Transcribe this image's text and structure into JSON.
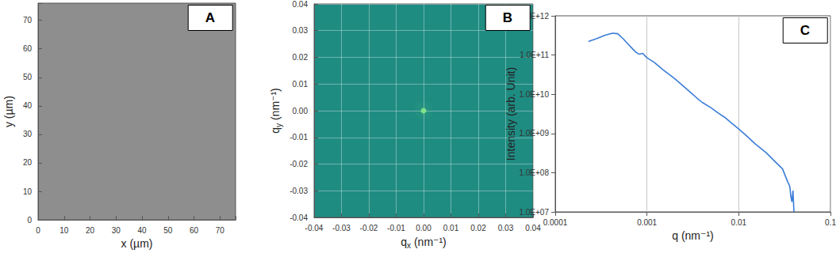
{
  "chart_data": [
    {
      "type": "image",
      "title": "A",
      "xlabel": "x (µm)",
      "ylabel": "y (µm)",
      "xlim": [
        0,
        76
      ],
      "ylim": [
        0,
        76
      ],
      "xticks": [
        0,
        10,
        20,
        30,
        40,
        50,
        60,
        70
      ],
      "yticks": [
        0,
        10,
        20,
        30,
        40,
        50,
        60,
        70
      ],
      "color": "#8e8e8e",
      "grid": false
    },
    {
      "type": "heatmap",
      "title": "B",
      "xlabel": "qx (nm⁻¹)",
      "ylabel": "qy (nm⁻¹)",
      "xlim": [
        -0.04,
        0.04
      ],
      "ylim": [
        -0.04,
        0.04
      ],
      "xticks": [
        -0.04,
        -0.03,
        -0.02,
        -0.01,
        {
          "value": 0,
          "label": "0.00"
        },
        0.01,
        0.02,
        0.03,
        0.04
      ],
      "yticks": [
        -0.04,
        -0.03,
        -0.02,
        -0.01,
        {
          "value": 0,
          "label": "0.00"
        },
        0.01,
        0.02,
        0.03,
        0.04
      ],
      "color": "#1f8c82",
      "peak": [
        0,
        0
      ],
      "grid": true
    },
    {
      "type": "line",
      "title": "C",
      "xlabel": "q (nm⁻¹)",
      "ylabel": "Intensity (arb. Unit)",
      "log": true,
      "xlim": [
        0.0001,
        0.1
      ],
      "ylim": [
        10000000.0,
        1000000000000.0
      ],
      "xticks": [
        0.0001,
        0.001,
        0.01,
        0.1
      ],
      "yticks": [
        {
          "value": 10000000.0,
          "label": "1.0E+07"
        },
        {
          "value": 100000000.0,
          "label": "1.0E+08"
        },
        {
          "value": 1000000000.0,
          "label": "1.0E+09"
        },
        {
          "value": 10000000000.0,
          "label": "1.0E+10"
        },
        {
          "value": 100000000000.0,
          "label": "1.0E+11"
        },
        {
          "value": 1000000000000.0,
          "label": "1.0E+12"
        }
      ],
      "x": [
        0.00023,
        0.00028,
        0.00035,
        0.00042,
        0.00048,
        0.00055,
        0.00065,
        0.00075,
        0.00082,
        0.0009,
        0.001,
        0.0012,
        0.0015,
        0.002,
        0.0025,
        0.003,
        0.0035,
        0.004,
        0.005,
        0.006,
        0.007,
        0.008,
        0.01,
        0.012,
        0.015,
        0.02,
        0.025,
        0.03,
        0.034,
        0.036,
        0.037,
        0.038,
        0.039,
        0.04
      ],
      "values": [
        220000000000.0,
        260000000000.0,
        320000000000.0,
        360000000000.0,
        350000000000.0,
        260000000000.0,
        170000000000.0,
        120000000000.0,
        105000000000.0,
        110000000000.0,
        85000000000.0,
        65000000000.0,
        42000000000.0,
        25000000000.0,
        16000000000.0,
        11000000000.0,
        8000000000.0,
        6200000000.0,
        4500000000.0,
        3300000000.0,
        2600000000.0,
        2000000000.0,
        1300000000.0,
        900000000.0,
        550000000.0,
        320000000.0,
        190000000.0,
        125000000.0,
        60000000.0,
        45000000.0,
        25000000.0,
        18000000.0,
        35000000.0,
        10000000.0
      ],
      "color": "#3b7dd8",
      "grid": true
    }
  ]
}
